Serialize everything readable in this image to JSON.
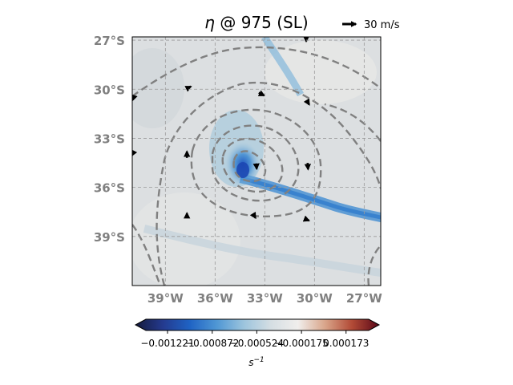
{
  "chart_data": {
    "type": "heatmap",
    "title": "η @ 975 (SL)",
    "title_parts": {
      "symbol": "η",
      "rest": " @ 975 (SL)"
    },
    "quiver_key": {
      "label": "30 m/s",
      "speed": 30
    },
    "map": {
      "lon_range": [
        -41,
        -26
      ],
      "lat_range": [
        -42,
        -26.8
      ],
      "xticks": [
        "39°W",
        "36°W",
        "33°W",
        "30°W",
        "27°W"
      ],
      "xtick_values": [
        -39,
        -36,
        -33,
        -30,
        -27
      ],
      "yticks": [
        "27°S",
        "30°S",
        "33°S",
        "36°S",
        "39°S"
      ],
      "ytick_values": [
        -27,
        -30,
        -33,
        -36,
        -39
      ],
      "grid": true
    },
    "colorbar": {
      "label": "s^-1",
      "label_base": "s",
      "label_exp": "−1",
      "ticks": [
        "−0.001221",
        "−0.000872",
        "−0.000524",
        "−0.000175",
        "0.000173"
      ],
      "tick_values": [
        -0.001221,
        -0.000872,
        -0.000524,
        -0.000175,
        0.000173
      ],
      "range": [
        -0.00139,
        0.00035
      ],
      "colormap": [
        "#151a3c",
        "#243a8e",
        "#1f63c4",
        "#4f97d4",
        "#9cc4dd",
        "#d5dee3",
        "#f0eeec",
        "#d9a58a",
        "#b24a36",
        "#5a0718"
      ],
      "extend": "both"
    },
    "vectors": [
      {
        "lon": -37.6,
        "lat": -29.9,
        "u": 10,
        "v": 5
      },
      {
        "lon": -33.2,
        "lat": -30.3,
        "u": 12,
        "v": -6
      },
      {
        "lon": -30.5,
        "lat": -26.9,
        "u": 0,
        "v": -12
      },
      {
        "lon": -30.4,
        "lat": -30.8,
        "u": 6,
        "v": -10
      },
      {
        "lon": -37.7,
        "lat": -34.0,
        "u": 0,
        "v": 14
      },
      {
        "lon": -33.5,
        "lat": -34.7,
        "u": 1,
        "v": -12
      },
      {
        "lon": -30.4,
        "lat": -34.7,
        "u": 1,
        "v": -14
      },
      {
        "lon": -37.7,
        "lat": -37.7,
        "u": 0,
        "v": 9
      },
      {
        "lon": -33.6,
        "lat": -37.8,
        "u": 3,
        "v": -5
      },
      {
        "lon": -30.4,
        "lat": -38.0,
        "u": 5,
        "v": -2
      },
      {
        "lon": -41.0,
        "lat": -30.4,
        "u": -4,
        "v": 4
      },
      {
        "lon": -41.0,
        "lat": -34.0,
        "u": -2,
        "v": -4
      }
    ]
  }
}
